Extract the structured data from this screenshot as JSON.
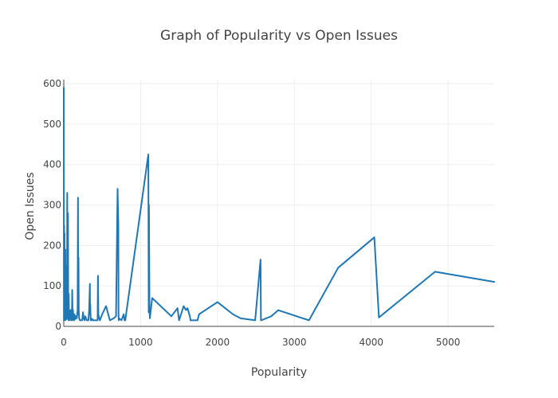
{
  "chart_data": {
    "type": "line",
    "title": "Graph of Popularity vs Open Issues",
    "xlabel": "Popularity",
    "ylabel": "Open Issues",
    "xlim": [
      0,
      5600
    ],
    "ylim": [
      0,
      610
    ],
    "xticks": [
      0,
      1000,
      2000,
      3000,
      4000,
      5000
    ],
    "yticks": [
      0,
      100,
      200,
      300,
      400,
      500,
      600
    ],
    "grid": true,
    "line_color": "#1f77b4",
    "series": [
      {
        "x": [
          0,
          2,
          5,
          8,
          10,
          12,
          15,
          18,
          20,
          22,
          25,
          28,
          30,
          32,
          35,
          38,
          40,
          42,
          45,
          48,
          50,
          52,
          55,
          58,
          60,
          62,
          65,
          68,
          70,
          72,
          75,
          78,
          80,
          85,
          90,
          95,
          100,
          105,
          110,
          115,
          120,
          125,
          130,
          135,
          140,
          145,
          150,
          160,
          170,
          180,
          185,
          188,
          190,
          192,
          195,
          200,
          210,
          220,
          230,
          240,
          250,
          260,
          270,
          280,
          290,
          300,
          320,
          330,
          340,
          342,
          345,
          350,
          355,
          360,
          370,
          380,
          400,
          420,
          440,
          445,
          450,
          460,
          470,
          500,
          550,
          600,
          650,
          680,
          700,
          710,
          712,
          715,
          720,
          750,
          780,
          790,
          800,
          1100,
          1105,
          1108,
          1110,
          1115,
          1120,
          1150,
          1400,
          1480,
          1500,
          1560,
          1590,
          1610,
          1640,
          1650,
          1670,
          1740,
          1760,
          2000,
          2200,
          2300,
          2490,
          2560,
          2565,
          2570,
          2700,
          2790,
          3190,
          3570,
          4040,
          4100,
          4830,
          5600
        ],
        "y": [
          590,
          15,
          250,
          40,
          230,
          20,
          120,
          30,
          190,
          15,
          60,
          20,
          100,
          25,
          150,
          18,
          50,
          22,
          330,
          30,
          40,
          20,
          280,
          25,
          60,
          15,
          80,
          20,
          30,
          15,
          40,
          20,
          25,
          20,
          40,
          15,
          30,
          20,
          90,
          15,
          40,
          20,
          25,
          15,
          30,
          20,
          18,
          25,
          20,
          40,
          318,
          30,
          110,
          170,
          40,
          20,
          15,
          15,
          15,
          15,
          35,
          20,
          15,
          25,
          20,
          15,
          15,
          40,
          105,
          30,
          55,
          15,
          20,
          15,
          18,
          15,
          15,
          15,
          15,
          125,
          30,
          20,
          15,
          30,
          50,
          15,
          20,
          25,
          340,
          250,
          30,
          15,
          20,
          15,
          30,
          15,
          15,
          425,
          35,
          300,
          240,
          40,
          20,
          70,
          25,
          45,
          15,
          50,
          40,
          45,
          25,
          15,
          15,
          15,
          30,
          60,
          30,
          20,
          15,
          165,
          15,
          15,
          25,
          40,
          15,
          145,
          220,
          22,
          135,
          110
        ]
      }
    ]
  }
}
